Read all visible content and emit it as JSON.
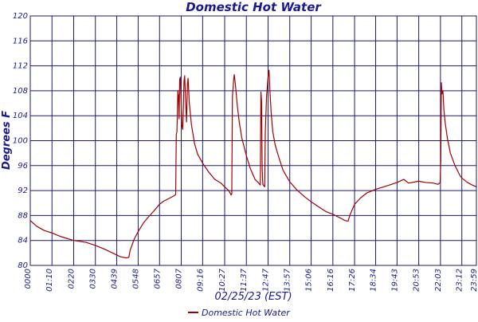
{
  "chart_data": {
    "type": "line",
    "title": "Domestic Hot Water",
    "xlabel": "02/25/23 (EST)",
    "ylabel": "Degrees F",
    "ylim": [
      80,
      120
    ],
    "yticks": [
      80,
      84,
      88,
      92,
      96,
      100,
      104,
      108,
      112,
      116,
      120
    ],
    "x_unit": "time of day (HH:MM)",
    "xlim": [
      "00:00",
      "23:59"
    ],
    "xtick_labels": [
      "0000",
      "01:10",
      "0220",
      "0330",
      "0439",
      "0548",
      "0657",
      "0807",
      "09:16",
      "10:27",
      "11:37",
      "12:47",
      "13:57",
      "15:06",
      "16:16",
      "17:26",
      "18:34",
      "19:43",
      "20:53",
      "22:03",
      "23:12",
      "23:59"
    ],
    "xtick_times": [
      "00:00",
      "01:10",
      "02:20",
      "03:30",
      "04:39",
      "05:48",
      "06:57",
      "08:07",
      "09:16",
      "10:27",
      "11:37",
      "12:47",
      "13:57",
      "15:06",
      "16:16",
      "17:26",
      "18:34",
      "19:43",
      "20:53",
      "22:03",
      "23:12",
      "23:59"
    ],
    "grid": true,
    "legend_position": "bottom-center",
    "colors": {
      "series": "#a00000",
      "grid": "#1a1a6e",
      "text": "#1a1a8c"
    },
    "series": [
      {
        "name": "Domestic Hot Water",
        "points": [
          [
            "00:00",
            87.2
          ],
          [
            "00:20",
            86.3
          ],
          [
            "00:45",
            85.6
          ],
          [
            "01:10",
            85.2
          ],
          [
            "01:40",
            84.6
          ],
          [
            "02:20",
            84.0
          ],
          [
            "03:00",
            83.7
          ],
          [
            "03:30",
            83.2
          ],
          [
            "04:00",
            82.6
          ],
          [
            "04:25",
            82.0
          ],
          [
            "04:50",
            81.4
          ],
          [
            "05:10",
            81.2
          ],
          [
            "05:18",
            81.3
          ],
          [
            "05:22",
            82.4
          ],
          [
            "05:35",
            84.2
          ],
          [
            "05:50",
            85.6
          ],
          [
            "06:05",
            86.8
          ],
          [
            "06:20",
            87.7
          ],
          [
            "06:40",
            88.8
          ],
          [
            "06:57",
            89.8
          ],
          [
            "07:10",
            90.3
          ],
          [
            "07:30",
            90.8
          ],
          [
            "07:45",
            91.2
          ],
          [
            "07:49",
            91.4
          ],
          [
            "07:51",
            101.0
          ],
          [
            "07:53",
            101.4
          ],
          [
            "07:56",
            108.0
          ],
          [
            "07:58",
            107.2
          ],
          [
            "08:00",
            103.5
          ],
          [
            "08:02",
            109.8
          ],
          [
            "08:04",
            110.2
          ],
          [
            "08:06",
            107.0
          ],
          [
            "08:09",
            102.5
          ],
          [
            "08:12",
            101.8
          ],
          [
            "08:14",
            106.0
          ],
          [
            "08:16",
            109.6
          ],
          [
            "08:18",
            110.4
          ],
          [
            "08:21",
            106.5
          ],
          [
            "08:24",
            103.0
          ],
          [
            "08:27",
            109.0
          ],
          [
            "08:29",
            110.0
          ],
          [
            "08:33",
            106.0
          ],
          [
            "08:40",
            102.5
          ],
          [
            "08:50",
            99.5
          ],
          [
            "09:00",
            97.8
          ],
          [
            "09:16",
            96.4
          ],
          [
            "09:35",
            95.0
          ],
          [
            "09:55",
            93.8
          ],
          [
            "10:15",
            93.2
          ],
          [
            "10:27",
            92.6
          ],
          [
            "10:40",
            92.0
          ],
          [
            "10:48",
            91.3
          ],
          [
            "10:50",
            91.5
          ],
          [
            "10:52",
            107.0
          ],
          [
            "10:56",
            109.8
          ],
          [
            "10:58",
            110.6
          ],
          [
            "11:02",
            108.8
          ],
          [
            "11:08",
            105.5
          ],
          [
            "11:14",
            103.0
          ],
          [
            "11:22",
            100.5
          ],
          [
            "11:37",
            97.6
          ],
          [
            "11:50",
            95.5
          ],
          [
            "12:05",
            93.8
          ],
          [
            "12:15",
            93.3
          ],
          [
            "12:22",
            92.9
          ],
          [
            "12:24",
            107.8
          ],
          [
            "12:26",
            106.3
          ],
          [
            "12:28",
            95.5
          ],
          [
            "12:30",
            93.0
          ],
          [
            "12:36",
            92.6
          ],
          [
            "12:38",
            101.2
          ],
          [
            "12:42",
            107.0
          ],
          [
            "12:47",
            110.2
          ],
          [
            "12:50",
            111.3
          ],
          [
            "12:53",
            108.0
          ],
          [
            "12:57",
            104.5
          ],
          [
            "13:02",
            101.5
          ],
          [
            "13:10",
            99.3
          ],
          [
            "13:20",
            97.6
          ],
          [
            "13:35",
            95.3
          ],
          [
            "13:57",
            93.4
          ],
          [
            "14:20",
            92.1
          ],
          [
            "14:45",
            91.0
          ],
          [
            "15:06",
            90.2
          ],
          [
            "15:30",
            89.4
          ],
          [
            "15:55",
            88.6
          ],
          [
            "16:16",
            88.2
          ],
          [
            "16:40",
            87.6
          ],
          [
            "16:55",
            87.2
          ],
          [
            "17:05",
            87.1
          ],
          [
            "17:12",
            88.2
          ],
          [
            "17:26",
            89.8
          ],
          [
            "17:45",
            90.8
          ],
          [
            "18:05",
            91.6
          ],
          [
            "18:34",
            92.2
          ],
          [
            "19:00",
            92.6
          ],
          [
            "19:25",
            93.0
          ],
          [
            "19:43",
            93.3
          ],
          [
            "20:05",
            93.8
          ],
          [
            "20:20",
            93.2
          ],
          [
            "20:53",
            93.5
          ],
          [
            "21:15",
            93.3
          ],
          [
            "21:40",
            93.2
          ],
          [
            "21:55",
            93.0
          ],
          [
            "22:02",
            93.3
          ],
          [
            "22:04",
            96.5
          ],
          [
            "22:06",
            109.3
          ],
          [
            "22:08",
            107.5
          ],
          [
            "22:11",
            108.0
          ],
          [
            "22:14",
            105.0
          ],
          [
            "22:18",
            103.0
          ],
          [
            "22:25",
            100.5
          ],
          [
            "22:35",
            98.0
          ],
          [
            "22:50",
            96.0
          ],
          [
            "23:05",
            94.5
          ],
          [
            "23:12",
            94.0
          ],
          [
            "23:30",
            93.3
          ],
          [
            "23:45",
            92.9
          ],
          [
            "23:59",
            92.6
          ]
        ]
      }
    ]
  }
}
